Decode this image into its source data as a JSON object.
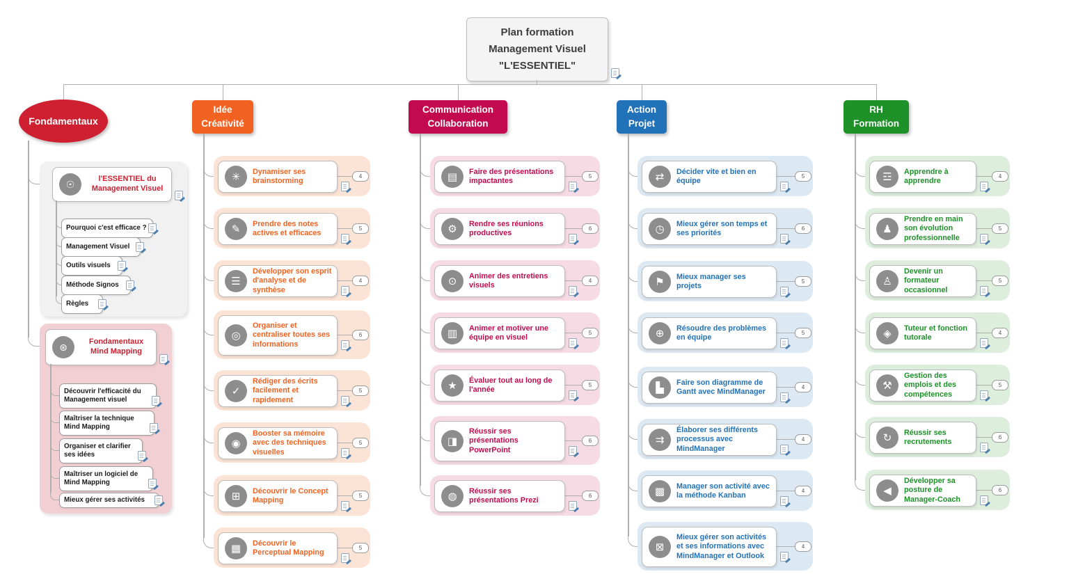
{
  "title": {
    "text": "Plan formation\nManagement Visuel\n\"L'ESSENTIEL\"",
    "has_note": true
  },
  "colors": {
    "line": "#aeaeae",
    "fondamentaux": "#ce2030",
    "idee": "#f26322",
    "comm": "#c40a4e",
    "action": "#2272b9",
    "rh": "#1e9129",
    "idee_light": "#fbe3d6",
    "comm_light": "#f7dbe4",
    "action_light": "#dce8f2",
    "rh_light": "#ddeedd",
    "group_grey": "#f1f1f1",
    "group_pink": "#f2cfd3"
  },
  "icon_glyphs": {
    "lightbulb-icon": "☉",
    "mindmap-icon": "⊛",
    "brainstorm-icon": "✳",
    "notes-icon": "✎",
    "analysis-icon": "☰",
    "organize-icon": "◎",
    "writing-icon": "✓",
    "memory-icon": "◉",
    "concept-map-icon": "⊞",
    "perceptual-map-icon": "▦",
    "presentation-icon": "▤",
    "meeting-icon": "⚙",
    "interview-icon": "⊙",
    "team-animation-icon": "▥",
    "evaluation-icon": "★",
    "powerpoint-icon": "◨",
    "prezi-icon": "◍",
    "signpost-icon": "⇄",
    "clock-icon": "◷",
    "flag-icon": "⚑",
    "problem-icon": "⊕",
    "gantt-icon": "▙",
    "process-icon": "⇉",
    "kanban-icon": "▩",
    "outlook-icon": "⊠",
    "learning-icon": "☲",
    "evolution-icon": "♟",
    "trainer-icon": "♙",
    "tutor-icon": "◈",
    "jobs-skills-icon": "⚒",
    "recruitment-icon": "↻",
    "coach-icon": "◀"
  },
  "branches": [
    {
      "id": "fondamentaux",
      "label": "Fondamentaux",
      "shape": "ellipse",
      "color": "#ce2030",
      "groups": [
        {
          "bg": "#f1f1f1",
          "header": {
            "label": "l'ESSENTIEL du\nManagement Visuel",
            "icon": "lightbulb-icon",
            "has_note": true
          },
          "items": [
            {
              "label": "Pourquoi c'est efficace ?",
              "has_note": true
            },
            {
              "label": "Management Visuel",
              "has_note": true
            },
            {
              "label": "Outils visuels",
              "has_note": true
            },
            {
              "label": "Méthode Signos",
              "has_note": true
            },
            {
              "label": "Règles",
              "has_note": true
            }
          ]
        },
        {
          "bg": "#f2cfd3",
          "header": {
            "label": "Fondamentaux\nMind Mapping",
            "icon": "mindmap-icon",
            "has_note": true
          },
          "items": [
            {
              "label": "Découvrir l'efficacité du Management visuel",
              "has_note": true
            },
            {
              "label": "Maîtriser la technique Mind Mapping",
              "has_note": true
            },
            {
              "label": "Organiser et clarifier ses idées",
              "has_note": true
            },
            {
              "label": "Maîtriser un logiciel de Mind Mapping",
              "has_note": true
            },
            {
              "label": "Mieux gérer ses activités",
              "has_note": true
            }
          ]
        }
      ]
    },
    {
      "id": "idee",
      "label": "Idée\nCréativité",
      "color": "#f26322",
      "light": "#fbe3d6",
      "items": [
        {
          "label": "Dynamiser ses brainstorming",
          "icon": "brainstorm-icon",
          "count": "4",
          "has_note": true
        },
        {
          "label": "Prendre des notes actives et efficaces",
          "icon": "notes-icon",
          "count": "5",
          "has_note": true
        },
        {
          "label": "Développer son esprit d'analyse et de synthèse",
          "icon": "analysis-icon",
          "count": "4",
          "has_note": true
        },
        {
          "label": "Organiser et centraliser toutes ses informations",
          "icon": "organize-icon",
          "count": "6",
          "has_note": true
        },
        {
          "label": "Rédiger des écrits facilement et rapidement",
          "icon": "writing-icon",
          "count": "5",
          "has_note": true
        },
        {
          "label": "Booster sa mémoire avec des techniques visuelles",
          "icon": "memory-icon",
          "count": "5",
          "has_note": true
        },
        {
          "label": "Découvrir le Concept Mapping",
          "icon": "concept-map-icon",
          "count": "5",
          "has_note": true
        },
        {
          "label": "Découvrir le Perceptual Mapping",
          "icon": "perceptual-map-icon",
          "count": "5",
          "has_note": true
        }
      ]
    },
    {
      "id": "comm",
      "label": "Communication\nCollaboration",
      "color": "#c40a4e",
      "light": "#f7dbe4",
      "items": [
        {
          "label": "Faire des présentations impactantes",
          "icon": "presentation-icon",
          "count": "5",
          "has_note": true
        },
        {
          "label": "Rendre ses réunions productives",
          "icon": "meeting-icon",
          "count": "6",
          "has_note": true
        },
        {
          "label": "Animer des entretiens visuels",
          "icon": "interview-icon",
          "count": "4",
          "has_note": true
        },
        {
          "label": "Animer et motiver une équipe en visuel",
          "icon": "team-animation-icon",
          "count": "5",
          "has_note": true
        },
        {
          "label": "Évaluer tout au long de l'année",
          "icon": "evaluation-icon",
          "count": "5",
          "has_note": true
        },
        {
          "label": "Réussir ses présentations PowerPoint",
          "icon": "powerpoint-icon",
          "count": "6",
          "has_note": true
        },
        {
          "label": "Réussir ses présentations Prezi",
          "icon": "prezi-icon",
          "count": "6",
          "has_note": true
        }
      ]
    },
    {
      "id": "action",
      "label": "Action\nProjet",
      "color": "#2272b9",
      "light": "#dce8f2",
      "items": [
        {
          "label": "Décider vite et bien en équipe",
          "icon": "signpost-icon",
          "count": "5",
          "has_note": true
        },
        {
          "label": "Mieux gérer son temps et ses priorités",
          "icon": "clock-icon",
          "count": "6",
          "has_note": true
        },
        {
          "label": "Mieux manager ses projets",
          "icon": "flag-icon",
          "count": "5",
          "has_note": true
        },
        {
          "label": "Résoudre des problèmes en équipe",
          "icon": "problem-icon",
          "count": "5",
          "has_note": true
        },
        {
          "label": "Faire son diagramme de Gantt avec MindManager",
          "icon": "gantt-icon",
          "count": "4",
          "has_note": true
        },
        {
          "label": "Élaborer ses différents processus avec MindManager",
          "icon": "process-icon",
          "count": "4",
          "has_note": true
        },
        {
          "label": "Manager son activité avec la méthode Kanban",
          "icon": "kanban-icon",
          "count": "4",
          "has_note": true
        },
        {
          "label": "Mieux gérer son activités et ses informations avec MindManager et Outlook",
          "icon": "outlook-icon",
          "count": "4",
          "has_note": true
        }
      ]
    },
    {
      "id": "rh",
      "label": "RH\nFormation",
      "color": "#1e9129",
      "light": "#ddeedd",
      "items": [
        {
          "label": "Apprendre à apprendre",
          "icon": "learning-icon",
          "count": "4",
          "has_note": true
        },
        {
          "label": "Prendre en main son évolution professionnelle",
          "icon": "evolution-icon",
          "count": "5",
          "has_note": true
        },
        {
          "label": "Devenir un formateur occasionnel",
          "icon": "trainer-icon",
          "count": "5",
          "has_note": true
        },
        {
          "label": "Tuteur et fonction tutorale",
          "icon": "tutor-icon",
          "count": "4",
          "has_note": true
        },
        {
          "label": "Gestion des emplois et des compétences",
          "icon": "jobs-skills-icon",
          "count": "5",
          "has_note": true
        },
        {
          "label": "Réussir ses recrutements",
          "icon": "recruitment-icon",
          "count": "6",
          "has_note": true
        },
        {
          "label": "Développer sa posture de Manager-Coach",
          "icon": "coach-icon",
          "count": "6",
          "has_note": true
        }
      ]
    }
  ]
}
